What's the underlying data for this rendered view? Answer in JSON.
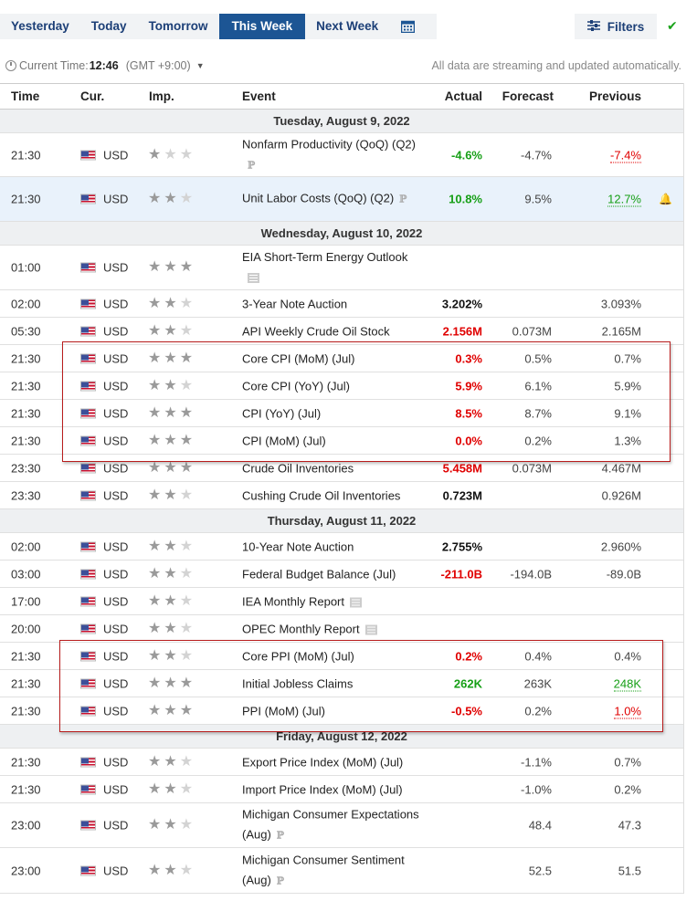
{
  "nav": {
    "tabs": [
      {
        "label": "Yesterday"
      },
      {
        "label": "Today"
      },
      {
        "label": "Tomorrow"
      },
      {
        "label": "This Week"
      },
      {
        "label": "Next Week"
      }
    ],
    "active_tab": "This Week",
    "calendar_icon": "calendar-icon",
    "filters_label": "Filters",
    "filters_icon": "sliders-icon",
    "status_icon": "checkmark-icon",
    "status_color": "#1aa31a"
  },
  "timebar": {
    "current_time_label": "Current Time:",
    "current_time": "12:46",
    "timezone": "(GMT +9:00)",
    "stream_note": "All data are streaming and updated automatically."
  },
  "columns": {
    "time": "Time",
    "currency": "Cur.",
    "importance": "Imp.",
    "event": "Event",
    "actual": "Actual",
    "forecast": "Forecast",
    "previous": "Previous"
  },
  "colors": {
    "accent": "#1c5594",
    "negative": "#e00000",
    "positive": "#169f16",
    "highlight_box": "#b81c1c"
  },
  "rows": [
    {
      "type": "date",
      "label": "Tuesday, August 9, 2022"
    },
    {
      "type": "event",
      "time": "21:30",
      "cur": "USD",
      "stars": 1,
      "event": "Nonfarm Productivity (QoQ) (Q2)",
      "prelim": true,
      "actual": "-4.6%",
      "actual_color": "green",
      "forecast": "-4.7%",
      "previous": "-7.4%",
      "previous_style": "red"
    },
    {
      "type": "event",
      "time": "21:30",
      "cur": "USD",
      "stars": 2,
      "event": "Unit Labor Costs (QoQ) (Q2)",
      "prelim": true,
      "actual": "10.8%",
      "actual_color": "green",
      "forecast": "9.5%",
      "previous": "12.7%",
      "previous_style": "green",
      "highlighted": true
    },
    {
      "type": "date",
      "label": "Wednesday, August 10, 2022"
    },
    {
      "type": "event",
      "time": "01:00",
      "cur": "USD",
      "stars": 3,
      "event": "EIA Short-Term Energy Outlook",
      "doc": true,
      "actual": "",
      "forecast": "",
      "previous": ""
    },
    {
      "type": "event",
      "time": "02:00",
      "cur": "USD",
      "stars": 2,
      "event": "3-Year Note Auction",
      "actual": "3.202%",
      "actual_color": "black",
      "forecast": "",
      "previous": "3.093%"
    },
    {
      "type": "event",
      "time": "05:30",
      "cur": "USD",
      "stars": 2,
      "event": "API Weekly Crude Oil Stock",
      "actual": "2.156M",
      "actual_color": "red",
      "forecast": "0.073M",
      "previous": "2.165M"
    },
    {
      "type": "event",
      "time": "21:30",
      "cur": "USD",
      "stars": 3,
      "event": "Core CPI (MoM) (Jul)",
      "actual": "0.3%",
      "actual_color": "red",
      "forecast": "0.5%",
      "previous": "0.7%"
    },
    {
      "type": "event",
      "time": "21:30",
      "cur": "USD",
      "stars": 2,
      "event": "Core CPI (YoY) (Jul)",
      "actual": "5.9%",
      "actual_color": "red",
      "forecast": "6.1%",
      "previous": "5.9%"
    },
    {
      "type": "event",
      "time": "21:30",
      "cur": "USD",
      "stars": 3,
      "event": "CPI (YoY) (Jul)",
      "actual": "8.5%",
      "actual_color": "red",
      "forecast": "8.7%",
      "previous": "9.1%"
    },
    {
      "type": "event",
      "time": "21:30",
      "cur": "USD",
      "stars": 3,
      "event": "CPI (MoM) (Jul)",
      "actual": "0.0%",
      "actual_color": "red",
      "forecast": "0.2%",
      "previous": "1.3%"
    },
    {
      "type": "event",
      "time": "23:30",
      "cur": "USD",
      "stars": 3,
      "event": "Crude Oil Inventories",
      "actual": "5.458M",
      "actual_color": "red",
      "forecast": "0.073M",
      "previous": "4.467M"
    },
    {
      "type": "event",
      "time": "23:30",
      "cur": "USD",
      "stars": 2,
      "event": "Cushing Crude Oil Inventories",
      "actual": "0.723M",
      "actual_color": "black",
      "forecast": "",
      "previous": "0.926M"
    },
    {
      "type": "date",
      "label": "Thursday, August 11, 2022"
    },
    {
      "type": "event",
      "time": "02:00",
      "cur": "USD",
      "stars": 2,
      "event": "10-Year Note Auction",
      "actual": "2.755%",
      "actual_color": "black",
      "forecast": "",
      "previous": "2.960%"
    },
    {
      "type": "event",
      "time": "03:00",
      "cur": "USD",
      "stars": 2,
      "event": "Federal Budget Balance (Jul)",
      "actual": "-211.0B",
      "actual_color": "red",
      "forecast": "-194.0B",
      "previous": "-89.0B"
    },
    {
      "type": "event",
      "time": "17:00",
      "cur": "USD",
      "stars": 2,
      "event": "IEA Monthly Report",
      "doc": true,
      "actual": "",
      "forecast": "",
      "previous": ""
    },
    {
      "type": "event",
      "time": "20:00",
      "cur": "USD",
      "stars": 2,
      "event": "OPEC Monthly Report",
      "doc": true,
      "actual": "",
      "forecast": "",
      "previous": ""
    },
    {
      "type": "event",
      "time": "21:30",
      "cur": "USD",
      "stars": 2,
      "event": "Core PPI (MoM) (Jul)",
      "actual": "0.2%",
      "actual_color": "red",
      "forecast": "0.4%",
      "previous": "0.4%"
    },
    {
      "type": "event",
      "time": "21:30",
      "cur": "USD",
      "stars": 3,
      "event": "Initial Jobless Claims",
      "actual": "262K",
      "actual_color": "green",
      "forecast": "263K",
      "previous": "248K",
      "previous_style": "green"
    },
    {
      "type": "event",
      "time": "21:30",
      "cur": "USD",
      "stars": 3,
      "event": "PPI (MoM) (Jul)",
      "actual": "-0.5%",
      "actual_color": "red",
      "forecast": "0.2%",
      "previous": "1.0%",
      "previous_style": "red"
    },
    {
      "type": "date",
      "label": "Friday, August 12, 2022"
    },
    {
      "type": "event",
      "time": "21:30",
      "cur": "USD",
      "stars": 2,
      "event": "Export Price Index (MoM) (Jul)",
      "actual": "",
      "forecast": "-1.1%",
      "previous": "0.7%"
    },
    {
      "type": "event",
      "time": "21:30",
      "cur": "USD",
      "stars": 2,
      "event": "Import Price Index (MoM) (Jul)",
      "actual": "",
      "forecast": "-1.0%",
      "previous": "0.2%"
    },
    {
      "type": "event",
      "time": "23:00",
      "cur": "USD",
      "stars": 2,
      "event": "Michigan Consumer Expectations (Aug)",
      "prelim": true,
      "actual": "",
      "forecast": "48.4",
      "previous": "47.3"
    },
    {
      "type": "event",
      "time": "23:00",
      "cur": "USD",
      "stars": 2,
      "event": "Michigan Consumer Sentiment (Aug)",
      "prelim": true,
      "actual": "",
      "forecast": "52.5",
      "previous": "51.5"
    }
  ]
}
